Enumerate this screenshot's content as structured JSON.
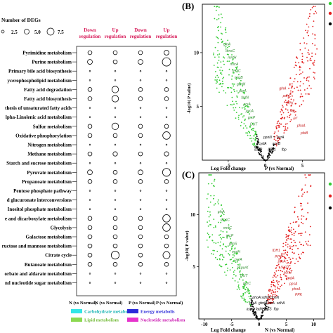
{
  "legend_size": {
    "title": "Number of DEGs",
    "values": [
      "2.5",
      "5.0",
      "7.5"
    ]
  },
  "columns": [
    {
      "header": "Down regulation"
    },
    {
      "header": "Up regulation"
    },
    {
      "header": "Down regulation"
    },
    {
      "header": "Up regulation"
    }
  ],
  "column_footers": [
    "N (vs Normal)",
    "N (vs Normal)",
    "P (vs Normal)",
    "P (vs Normal)"
  ],
  "pathways": [
    {
      "name": "Pyrimidine metabolism",
      "sizes": [
        2.5,
        2.5,
        2.5,
        3.5
      ]
    },
    {
      "name": "Purine metabolism",
      "sizes": [
        3.5,
        2.5,
        3.5,
        7.5
      ]
    },
    {
      "name": "Primary bile acid biosynthesis",
      "sizes": [
        0.5,
        0.5,
        0.5,
        0.5
      ]
    },
    {
      "name": "ycerophospholipid metabolism",
      "sizes": [
        0.5,
        0.5,
        0.5,
        0.5
      ]
    },
    {
      "name": "Fatty acid degradation",
      "sizes": [
        2.5,
        5.5,
        2.5,
        2.5
      ]
    },
    {
      "name": "Fatty acid biosynthesis",
      "sizes": [
        2.5,
        5.5,
        2.5,
        2.5
      ]
    },
    {
      "name": "thesis of unsaturated fatty acids",
      "sizes": [
        0.5,
        0.5,
        0.5,
        0.5
      ]
    },
    {
      "name": "lpha-Linolenic acid metabolism",
      "sizes": [
        0.5,
        0.5,
        0.5,
        0.5
      ]
    },
    {
      "name": "Sulfur metabolism",
      "sizes": [
        2.5,
        5.5,
        2.5,
        2.5
      ]
    },
    {
      "name": "Oxidative phosphorylation",
      "sizes": [
        2.5,
        2.5,
        2.5,
        6.5
      ]
    },
    {
      "name": "Nitrogen metabolism",
      "sizes": [
        0.5,
        0.5,
        0.5,
        0.5
      ]
    },
    {
      "name": "Methane metabolism",
      "sizes": [
        2.5,
        3,
        2.5,
        3
      ]
    },
    {
      "name": "Starch and sucrose metabolism",
      "sizes": [
        0.5,
        0.5,
        0.5,
        0.5
      ]
    },
    {
      "name": "Pyruvate metabolism",
      "sizes": [
        3.5,
        2.5,
        3.5,
        7
      ]
    },
    {
      "name": "Propanoate metabolism",
      "sizes": [
        2.5,
        2.5,
        2.5,
        2.5
      ]
    },
    {
      "name": "Pentose phosphate pathway",
      "sizes": [
        0.5,
        0.5,
        0.5,
        0.5
      ]
    },
    {
      "name": "d glucuronate interconversions",
      "sizes": [
        0.5,
        0.5,
        0.5,
        0.5
      ]
    },
    {
      "name": "Inositol phosphate metabolism",
      "sizes": [
        0.5,
        0.5,
        0.5,
        0.5
      ]
    },
    {
      "name": "e and dicarboxylate metabolism",
      "sizes": [
        2.5,
        2.5,
        2.5,
        6.5
      ]
    },
    {
      "name": "Glycolysis",
      "sizes": [
        2.5,
        2.5,
        2.5,
        6.5
      ]
    },
    {
      "name": "Galactose metabolism",
      "sizes": [
        2.5,
        2.5,
        2.5,
        2.5
      ]
    },
    {
      "name": "ructose and mannose metabolism",
      "sizes": [
        2.5,
        2.5,
        2.5,
        2.5
      ]
    },
    {
      "name": "Citrate cycle",
      "sizes": [
        2.5,
        7,
        2.5,
        6
      ]
    },
    {
      "name": "Butanoate metabolism",
      "sizes": [
        2.5,
        2.5,
        2.5,
        2.5
      ]
    },
    {
      "name": "orbate and aldarate metabolism",
      "sizes": [
        0.5,
        0.5,
        0.5,
        0.5
      ]
    },
    {
      "name": "nd nucleotide sugar metabolism",
      "sizes": [
        0.5,
        0.5,
        0.5,
        0.5
      ]
    }
  ],
  "category_legend": [
    {
      "label": "Carbohydrate metabolism",
      "color": "#33e6e6"
    },
    {
      "label": "Energy metabolis",
      "color": "#2b2bd9"
    },
    {
      "label": "Lipid metabolism",
      "color": "#8cd950"
    },
    {
      "label": "Nucleotide metabolism",
      "color": "#e633cc"
    }
  ],
  "colors": {
    "header_text": "#d81e5b",
    "up": "#e41f1f",
    "down": "#33cc33",
    "ns": "#000000"
  },
  "panel_B": {
    "label": "(B)",
    "xlabel": "Log Fold change",
    "xlabel_suffix": "P (vs Normal)",
    "ylabel": "-log10( P value)",
    "xticks": [
      "-5",
      "0",
      "5"
    ],
    "yticks": [
      "5",
      "10"
    ],
    "labels_green": [
      "glnA",
      "dmsC",
      "mntH",
      "msrA",
      "mntC",
      "msrB",
      "glmM",
      "purA",
      "fadN",
      "prsA",
      "pycA",
      "grcP",
      "DUT"
    ],
    "labels_red": [
      "glnA",
      "pdhC",
      "PPK",
      "fbp",
      "crr",
      "phoA",
      "pfaB"
    ],
    "labels_black": [
      "sdhB",
      "cydA",
      "ppnN",
      "IDH1",
      "acnB",
      "pyrA",
      "fbp"
    ]
  },
  "panel_C": {
    "label": "(C)",
    "xlabel": "Log Fold change",
    "xlabel_suffix": "N (vs Normal)",
    "ylabel": "-log10( P value)",
    "xticks": [
      "-10",
      "-5",
      "0",
      "5",
      "10"
    ],
    "yticks": [
      "5",
      "10"
    ],
    "labels_green": [
      "glnA",
      "dmsC",
      "mntC",
      "grcP",
      "glmS",
      "mntH",
      "purA",
      "P-purK",
      "DUT",
      "purC"
    ],
    "labels_red": [
      "IDH1",
      "pycB",
      "pycA",
      "sucD",
      "acnB",
      "cydA",
      "ppsA",
      "phoA",
      "PPK"
    ],
    "labels_black": [
      "aspC",
      "prsA",
      "phoA",
      "fadN",
      "glmM",
      "sdhB",
      "ptsS",
      "ptsA",
      "ppnN",
      "fbp",
      "sdhA"
    ]
  }
}
